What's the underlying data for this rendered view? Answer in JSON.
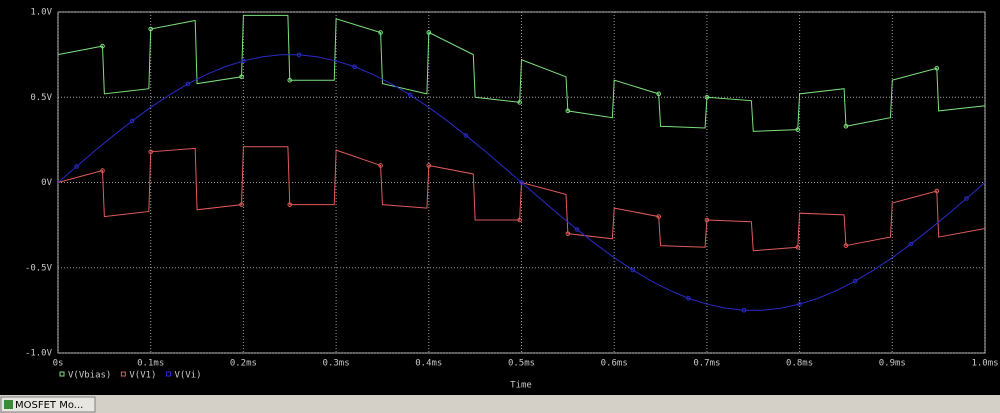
{
  "chart_data": {
    "type": "line",
    "xlabel": "Time",
    "xlim": [
      0,
      1.0
    ],
    "ylim": [
      -1.0,
      1.0
    ],
    "xticks": [
      {
        "value": 0,
        "label": "0s"
      },
      {
        "value": 0.1,
        "label": "0.1ms"
      },
      {
        "value": 0.2,
        "label": "0.2ms"
      },
      {
        "value": 0.3,
        "label": "0.3ms"
      },
      {
        "value": 0.4,
        "label": "0.4ms"
      },
      {
        "value": 0.5,
        "label": "0.5ms"
      },
      {
        "value": 0.6,
        "label": "0.6ms"
      },
      {
        "value": 0.7,
        "label": "0.7ms"
      },
      {
        "value": 0.8,
        "label": "0.8ms"
      },
      {
        "value": 0.9,
        "label": "0.9ms"
      },
      {
        "value": 1.0,
        "label": "1.0ms"
      }
    ],
    "yticks": [
      {
        "value": 1.0,
        "label": "1.0V"
      },
      {
        "value": 0.5,
        "label": "0.5V"
      },
      {
        "value": 0,
        "label": "0V"
      },
      {
        "value": -0.5,
        "label": "-0.5V"
      },
      {
        "value": -1.0,
        "label": "-1.0V"
      }
    ],
    "grid": true,
    "series": [
      {
        "name": "V(Vbias)",
        "color": "#7ee07e",
        "x": [
          0,
          0.048,
          0.05,
          0.098,
          0.1,
          0.148,
          0.15,
          0.198,
          0.2,
          0.248,
          0.25,
          0.298,
          0.3,
          0.348,
          0.35,
          0.398,
          0.4,
          0.448,
          0.45,
          0.498,
          0.5,
          0.548,
          0.55,
          0.598,
          0.6,
          0.648,
          0.65,
          0.698,
          0.7,
          0.748,
          0.75,
          0.798,
          0.8,
          0.848,
          0.85,
          0.898,
          0.9,
          0.948,
          0.95,
          1.0
        ],
        "values": [
          0.75,
          0.8,
          0.52,
          0.55,
          0.9,
          0.95,
          0.58,
          0.62,
          0.98,
          0.98,
          0.6,
          0.6,
          0.96,
          0.88,
          0.58,
          0.52,
          0.88,
          0.75,
          0.5,
          0.47,
          0.72,
          0.62,
          0.42,
          0.38,
          0.6,
          0.52,
          0.33,
          0.32,
          0.5,
          0.48,
          0.3,
          0.31,
          0.52,
          0.55,
          0.33,
          0.38,
          0.6,
          0.67,
          0.42,
          0.45
        ]
      },
      {
        "name": "V(V1)",
        "color": "#e05a5a",
        "x": [
          0,
          0.048,
          0.05,
          0.098,
          0.1,
          0.148,
          0.15,
          0.198,
          0.2,
          0.248,
          0.25,
          0.298,
          0.3,
          0.348,
          0.35,
          0.398,
          0.4,
          0.448,
          0.45,
          0.498,
          0.5,
          0.548,
          0.55,
          0.598,
          0.6,
          0.648,
          0.65,
          0.698,
          0.7,
          0.748,
          0.75,
          0.798,
          0.8,
          0.848,
          0.85,
          0.898,
          0.9,
          0.948,
          0.95,
          1.0
        ],
        "values": [
          0,
          0.07,
          -0.2,
          -0.17,
          0.18,
          0.2,
          -0.16,
          -0.13,
          0.21,
          0.21,
          -0.13,
          -0.13,
          0.19,
          0.1,
          -0.13,
          -0.15,
          0.1,
          0.05,
          -0.22,
          -0.22,
          0.0,
          -0.07,
          -0.3,
          -0.33,
          -0.15,
          -0.2,
          -0.37,
          -0.38,
          -0.22,
          -0.23,
          -0.4,
          -0.38,
          -0.18,
          -0.19,
          -0.37,
          -0.32,
          -0.12,
          -0.05,
          -0.32,
          -0.27
        ]
      },
      {
        "name": "V(Vi)",
        "color": "#2a2ac8",
        "x": [
          0,
          0.02,
          0.04,
          0.06,
          0.08,
          0.1,
          0.12,
          0.14,
          0.16,
          0.18,
          0.2,
          0.22,
          0.24,
          0.26,
          0.28,
          0.3,
          0.32,
          0.34,
          0.36,
          0.38,
          0.4,
          0.42,
          0.44,
          0.46,
          0.48,
          0.5,
          0.52,
          0.54,
          0.56,
          0.58,
          0.6,
          0.62,
          0.64,
          0.66,
          0.68,
          0.7,
          0.72,
          0.74,
          0.76,
          0.78,
          0.8,
          0.82,
          0.84,
          0.86,
          0.88,
          0.9,
          0.92,
          0.94,
          0.96,
          0.98,
          1.0
        ],
        "values": [
          0,
          0.094,
          0.187,
          0.276,
          0.361,
          0.441,
          0.513,
          0.578,
          0.633,
          0.679,
          0.713,
          0.737,
          0.749,
          0.749,
          0.737,
          0.713,
          0.679,
          0.633,
          0.578,
          0.513,
          0.441,
          0.361,
          0.276,
          0.187,
          0.094,
          0,
          -0.094,
          -0.187,
          -0.276,
          -0.361,
          -0.441,
          -0.513,
          -0.578,
          -0.633,
          -0.679,
          -0.713,
          -0.737,
          -0.749,
          -0.749,
          -0.737,
          -0.713,
          -0.679,
          -0.633,
          -0.578,
          -0.513,
          -0.441,
          -0.361,
          -0.276,
          -0.187,
          -0.094,
          0
        ]
      }
    ]
  },
  "taskbar_label": "MOSFET Mo..."
}
